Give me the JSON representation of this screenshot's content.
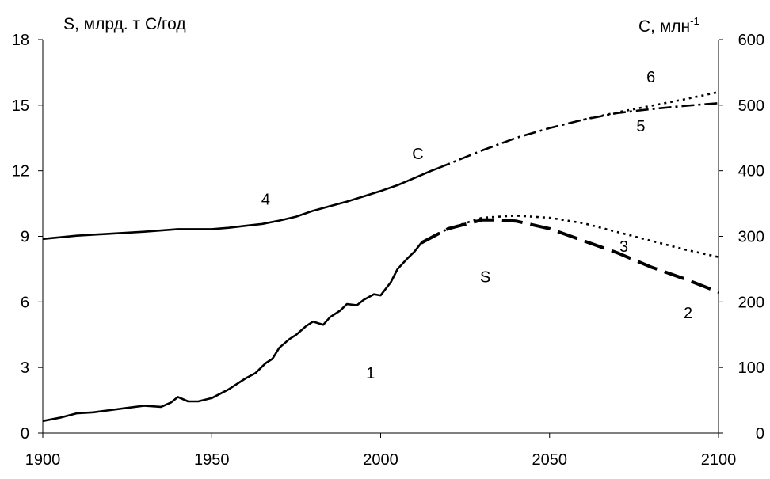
{
  "chart_data": {
    "type": "line",
    "title": "",
    "xlim": [
      1900,
      2100
    ],
    "x_ticks": [
      "1900",
      "1950",
      "2000",
      "2050",
      "2100"
    ],
    "left_axis": {
      "label": "S, млрд. т С/год",
      "ylim": [
        0,
        18
      ],
      "ticks": [
        "0",
        "3",
        "6",
        "9",
        "12",
        "15",
        "18"
      ]
    },
    "right_axis": {
      "label_main": "С, млн",
      "label_sup": "-1",
      "ylim": [
        0,
        600
      ],
      "ticks": [
        "0",
        "100",
        "200",
        "300",
        "400",
        "500",
        "600"
      ]
    },
    "grid": false,
    "series": [
      {
        "name": "1",
        "axis": "left",
        "style": "solid",
        "x": [
          1900,
          1905,
          1910,
          1915,
          1920,
          1925,
          1930,
          1935,
          1938,
          1940,
          1943,
          1946,
          1950,
          1955,
          1960,
          1963,
          1966,
          1968,
          1970,
          1973,
          1975,
          1978,
          1980,
          1983,
          1985,
          1988,
          1990,
          1993,
          1995,
          1998,
          2000,
          2003,
          2005,
          2008,
          2010,
          2012
        ],
        "values": [
          0.55,
          0.7,
          0.9,
          0.95,
          1.05,
          1.15,
          1.25,
          1.2,
          1.4,
          1.65,
          1.45,
          1.45,
          1.6,
          2.0,
          2.5,
          2.75,
          3.2,
          3.4,
          3.9,
          4.3,
          4.5,
          4.9,
          5.1,
          4.95,
          5.3,
          5.6,
          5.9,
          5.85,
          6.1,
          6.35,
          6.3,
          6.9,
          7.5,
          8.0,
          8.3,
          8.7
        ]
      },
      {
        "name": "2",
        "axis": "left",
        "style": "long-dash",
        "x": [
          2012,
          2020,
          2030,
          2035,
          2040,
          2050,
          2060,
          2070,
          2080,
          2090,
          2100
        ],
        "values": [
          8.7,
          9.35,
          9.75,
          9.75,
          9.7,
          9.35,
          8.8,
          8.25,
          7.6,
          7.05,
          6.45
        ]
      },
      {
        "name": "3",
        "axis": "left",
        "style": "dotted",
        "x": [
          2012,
          2020,
          2030,
          2040,
          2050,
          2060,
          2070,
          2080,
          2090,
          2100
        ],
        "values": [
          8.7,
          9.35,
          9.85,
          9.95,
          9.85,
          9.6,
          9.2,
          8.8,
          8.4,
          8.05
        ]
      },
      {
        "name": "4",
        "axis": "right",
        "style": "solid",
        "x": [
          1900,
          1910,
          1920,
          1930,
          1940,
          1950,
          1955,
          1960,
          1965,
          1970,
          1975,
          1980,
          1985,
          1990,
          1995,
          2000,
          2005,
          2010,
          2015,
          2017
        ],
        "values": [
          296,
          301,
          304,
          307,
          311,
          311,
          313,
          316,
          319,
          324,
          330,
          339,
          346,
          353,
          361,
          369,
          378,
          389,
          400,
          404
        ]
      },
      {
        "name": "5",
        "axis": "right",
        "style": "dash-dot",
        "x": [
          2017,
          2030,
          2040,
          2050,
          2060,
          2070,
          2080,
          2090,
          2100
        ],
        "values": [
          404,
          431,
          450,
          465,
          478,
          488,
          494,
          499,
          503
        ]
      },
      {
        "name": "6",
        "axis": "right",
        "style": "dotted",
        "x": [
          2060,
          2070,
          2080,
          2090,
          2100
        ],
        "values": [
          478,
          489,
          499,
          509,
          520
        ]
      }
    ],
    "annotations": [
      {
        "text": "1",
        "x": 1997,
        "y": 2.5,
        "axis": "left"
      },
      {
        "text": "2",
        "x": 2091,
        "y": 5.25,
        "axis": "left"
      },
      {
        "text": "3",
        "x": 2072,
        "y": 8.3,
        "axis": "left"
      },
      {
        "text": "S",
        "x": 2031,
        "y": 6.9,
        "axis": "left"
      },
      {
        "text": "4",
        "x": 1966,
        "y": 348,
        "axis": "right"
      },
      {
        "text": "С",
        "x": 2011,
        "y": 418,
        "axis": "right"
      },
      {
        "text": "5",
        "x": 2077,
        "y": 460,
        "axis": "right"
      },
      {
        "text": "6",
        "x": 2080,
        "y": 535,
        "axis": "right"
      }
    ]
  }
}
